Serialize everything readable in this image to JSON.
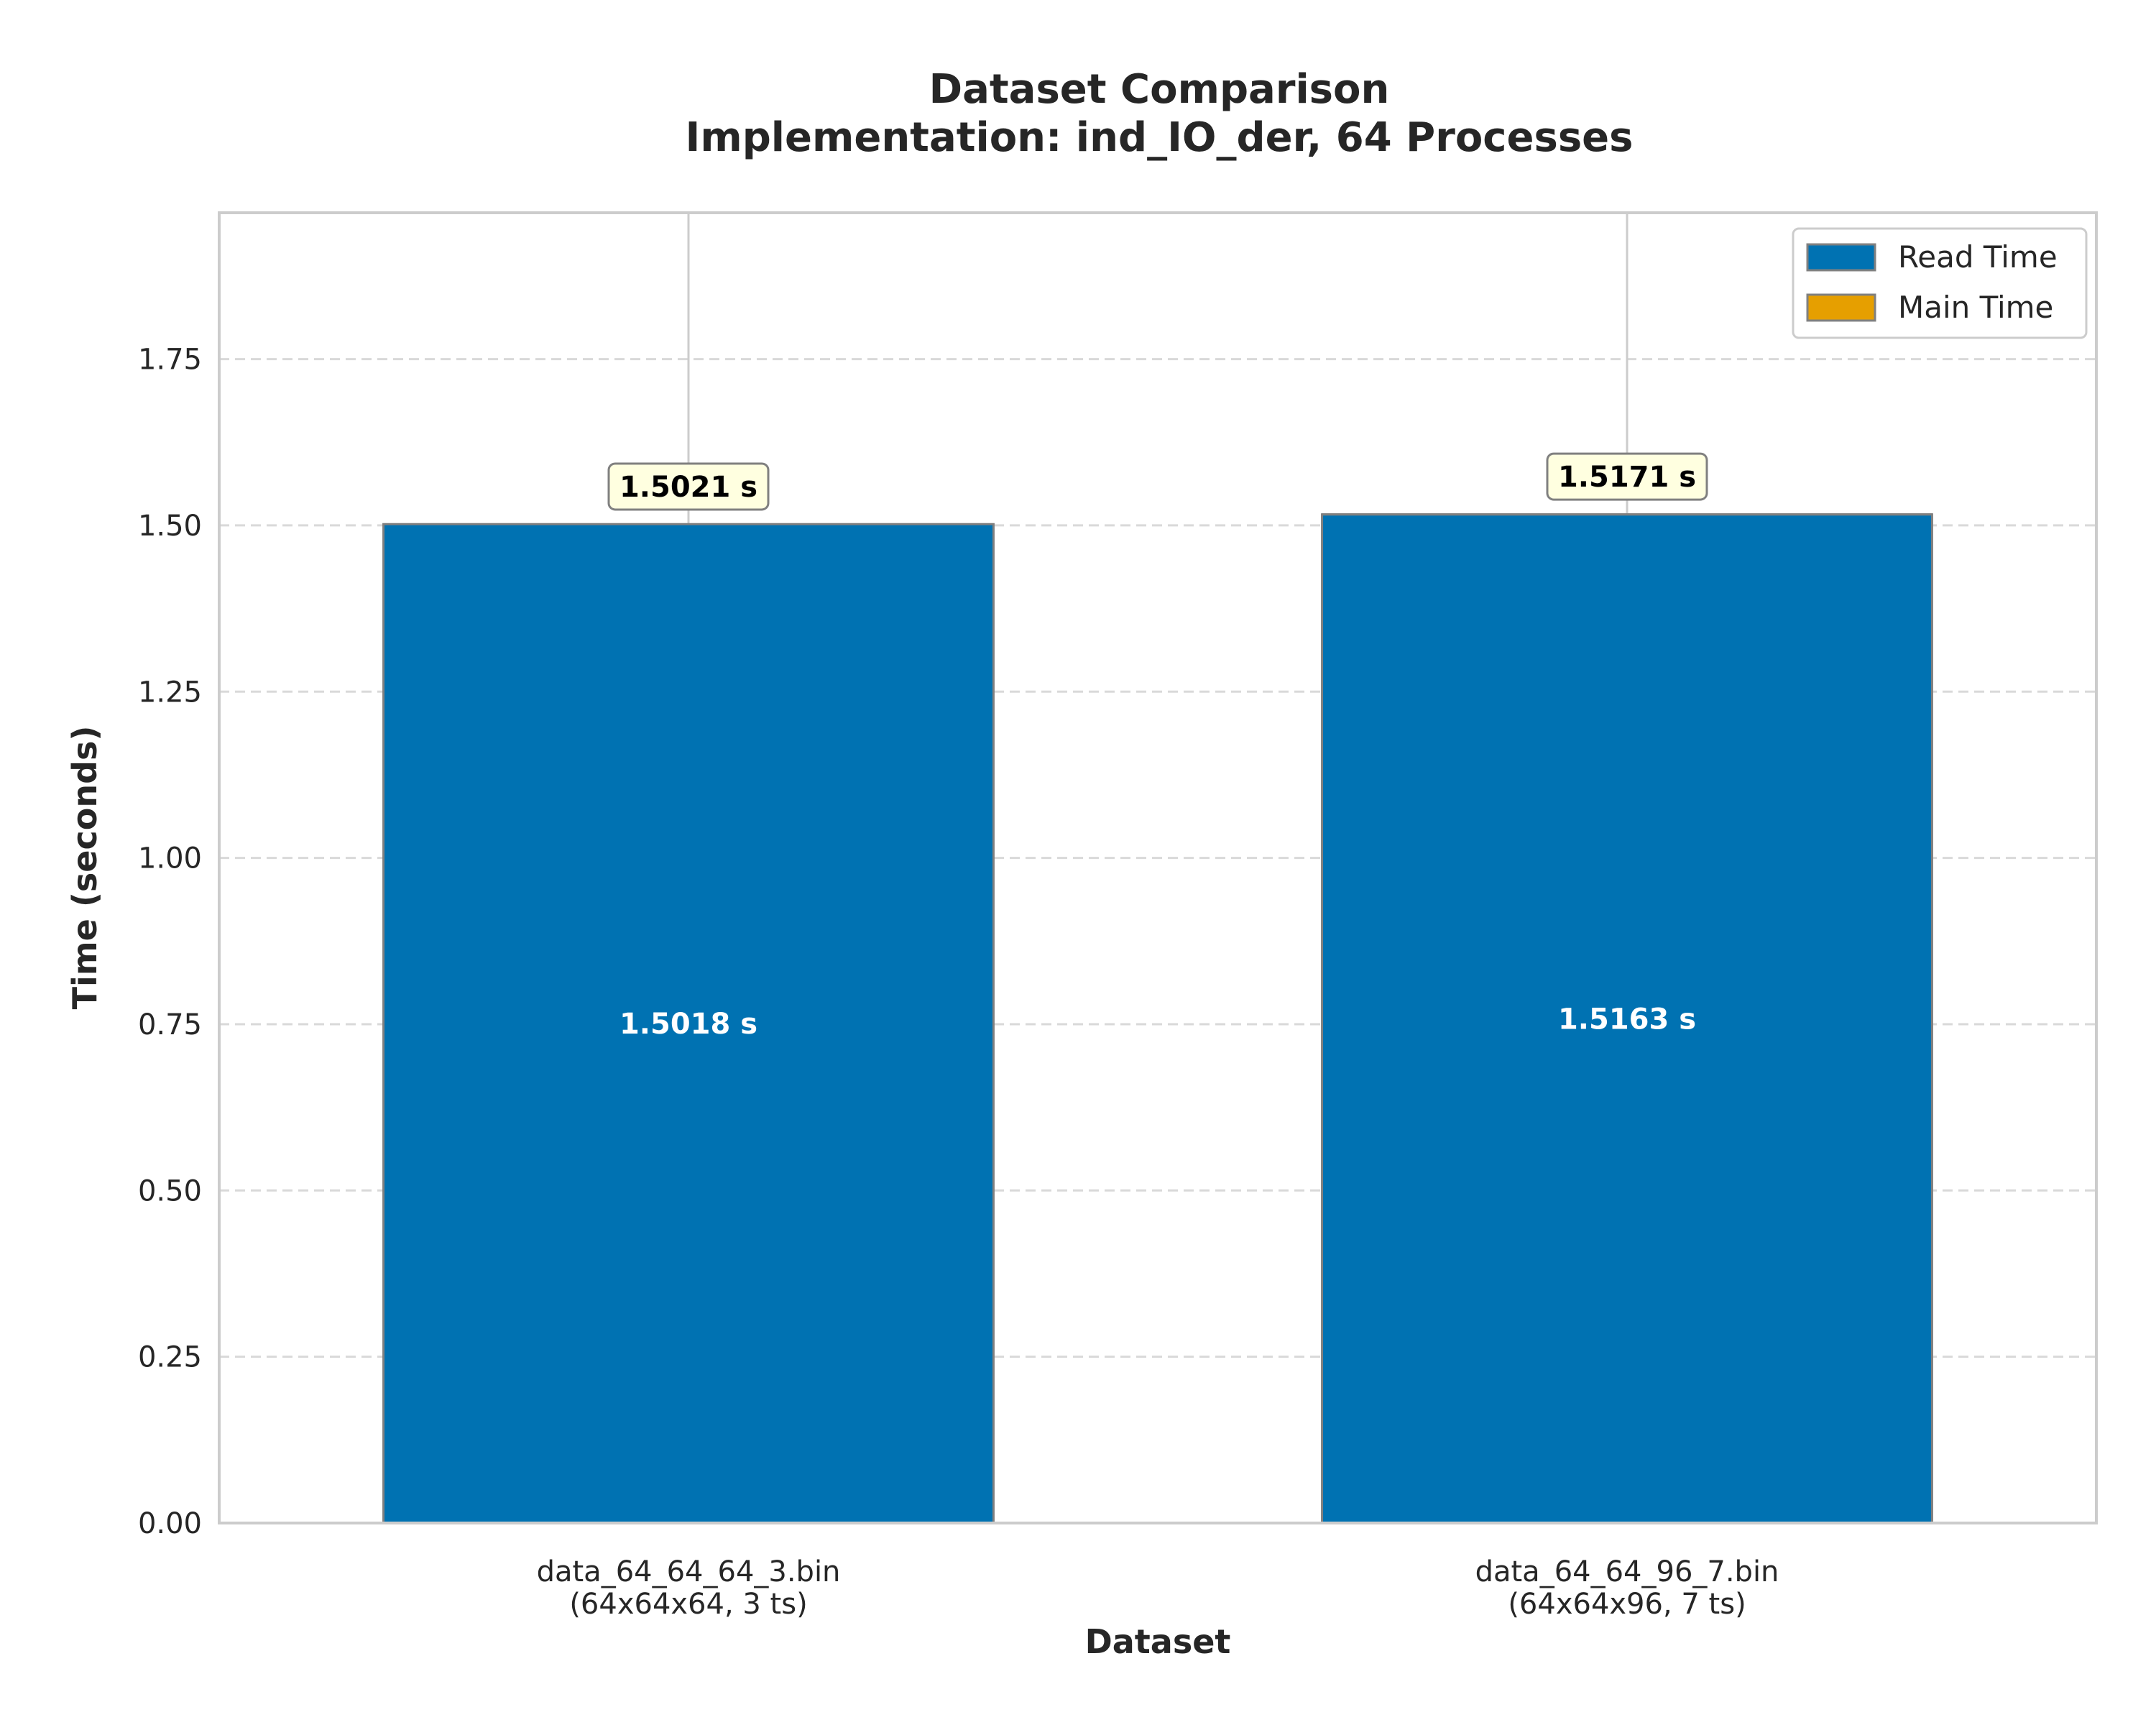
{
  "chart_data": {
    "type": "bar",
    "title": "Dataset Comparison",
    "subtitle": "Implementation: ind_IO_der, 64 Processes",
    "xlabel": "Dataset",
    "ylabel": "Time (seconds)",
    "ylim": [
      0,
      1.97
    ],
    "yticks": [
      0.0,
      0.25,
      0.5,
      0.75,
      1.0,
      1.25,
      1.5,
      1.75
    ],
    "ytick_labels": [
      "0.00",
      "0.25",
      "0.50",
      "0.75",
      "1.00",
      "1.25",
      "1.50",
      "1.75"
    ],
    "grid": "y dashed, x solid",
    "legend_position": "top-right",
    "categories": [
      [
        "data_64_64_64_3.bin",
        "(64x64x64, 3 ts)"
      ],
      [
        "data_64_64_96_7.bin",
        "(64x64x96, 7 ts)"
      ]
    ],
    "series": [
      {
        "name": "Read Time",
        "color": "#0072b2",
        "values": [
          1.5018,
          1.5163
        ],
        "value_labels": [
          "1.5018 s",
          "1.5163 s"
        ]
      },
      {
        "name": "Main Time",
        "color": "#e69f00",
        "values": [
          0.0003,
          0.0008
        ]
      }
    ],
    "totals": [
      1.5021,
      1.5171
    ],
    "total_labels": [
      "1.5021 s",
      "1.5171 s"
    ]
  }
}
